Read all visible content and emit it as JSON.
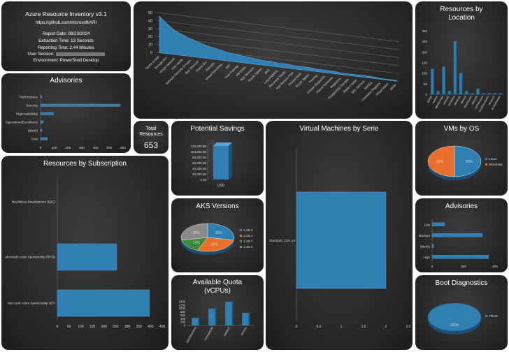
{
  "info": {
    "title": "Azure Resource Inventory v3.1",
    "url": "https://github.com/microsoft/ARI",
    "report_date": "Report Date: 08/23/2024",
    "extraction_time": "Extraction Time: 13 Seconds",
    "reporting_time": "Reporting Time: 2.44 Minutes",
    "user_session": "User Session: ",
    "environment": "Environment: PowerShell Desktop"
  },
  "total": {
    "title_1": "Total",
    "title_2": "Resources",
    "value": "653"
  },
  "titles": {
    "advisories": "Advisories",
    "potential_savings": "Potential Savings",
    "vm_by_serie": "Virtual Machines by Serie",
    "resources_by_location_1": "Resources by",
    "resources_by_location_2": "Location",
    "vms_by_os": "VMs by OS",
    "resources_by_subscription": "Resources by Subscription",
    "aks_versions": "AKS Versions",
    "advisories_impact": "Advisories",
    "available_quota_1": "Available Quota",
    "available_quota_2": "(vCPUs)",
    "boot_diagnostics": "Boot Diagnostics"
  },
  "colors": {
    "blue": "#2f7fb3",
    "orange": "#e86f2c",
    "green": "#3b8a3e",
    "gray": "#8a8a8a",
    "panel": "#2a2a2a"
  },
  "chart_data": [
    {
      "id": "resource_types",
      "type": "area",
      "categories": [
        "Quota Usage",
        "Storage Acc",
        "Virtual Network",
        "Key Vaults",
        "Network Security Groups",
        "App Services",
        "Public IPs",
        "Subnets",
        "Virtual Machines",
        "NIC",
        "Vnet Peering",
        "VM Disks",
        "App Services",
        "Route Tables",
        "AKS",
        "Log Analytics",
        "Recovery Vaults",
        "App Service Plan",
        "Private DNS",
        "Route Tables",
        "Peering",
        "Private Endpoints",
        "Virtual Networks",
        "Registries",
        "PostgreSQL Flexible",
        "Redis Cache",
        "SQL Servers",
        "MySQL",
        "Container Registry",
        "Virtual WAN",
        "APIM"
      ],
      "values": [
        46,
        37,
        30,
        26,
        22,
        19,
        16,
        14,
        12,
        10,
        9,
        8,
        7,
        6,
        6,
        5,
        5,
        4,
        4,
        4,
        3,
        3,
        3,
        2,
        2,
        2,
        2,
        2,
        1,
        1,
        1
      ],
      "yticks": [
        "50",
        "40",
        "30",
        "20",
        "10",
        "0"
      ],
      "ylim": [
        0,
        50
      ]
    },
    {
      "id": "advisories_category",
      "type": "bar",
      "orientation": "horizontal",
      "categories": [
        "Performance",
        "Security",
        "HighAvailability",
        "OperationalExcellence",
        "(blank)",
        "Cost"
      ],
      "values": [
        5,
        580,
        95,
        20,
        5,
        50
      ],
      "xticks": [
        "0",
        "100",
        "200",
        "300",
        "400",
        "500",
        "600"
      ],
      "xlim": [
        0,
        600
      ]
    },
    {
      "id": "potential_savings",
      "type": "bar",
      "categories": [
        "USD"
      ],
      "values": [
        120000
      ],
      "yticks": [
        "120,000.00",
        "100,000.00",
        "80,000.00",
        "60,000.00",
        "40,000.00",
        "20,000.00",
        "0.00"
      ],
      "ylim": [
        0,
        120000
      ]
    },
    {
      "id": "vm_by_serie",
      "type": "bar",
      "orientation": "horizontal",
      "categories": [
        "Standard_D2s_v3"
      ],
      "values": [
        2
      ],
      "xticks": [
        "0",
        "0.5",
        "1",
        "1.5",
        "2",
        "2.5"
      ],
      "xlim": [
        0,
        2.5
      ]
    },
    {
      "id": "resources_by_location",
      "type": "bar",
      "categories": [
        "global",
        "eastus",
        "westeurope",
        "eastus2",
        "centralus",
        "westus2",
        "westus",
        "brazilsouth",
        "uksouth",
        "northeurope",
        "southcentralus",
        "westus3",
        "australiaeast"
      ],
      "values": [
        120,
        15,
        130,
        15,
        250,
        100,
        15,
        5,
        25,
        5,
        5,
        5,
        5
      ],
      "yticks": [
        "300",
        "250",
        "200",
        "150",
        "100",
        "50",
        "0"
      ],
      "ylim": [
        0,
        300
      ]
    },
    {
      "id": "vms_by_os",
      "type": "pie",
      "labels": [
        "Linux",
        "Windows"
      ],
      "values": [
        50,
        50
      ],
      "data_labels": [
        "50%",
        "50%"
      ]
    },
    {
      "id": "resources_by_subscription",
      "type": "bar",
      "orientation": "horizontal",
      "categories": [
        "MyAbilities Development (B2C)",
        "Microsoft Azure Sponsorship PROD",
        "Microsoft Azure Sponsorship DEV"
      ],
      "values": [
        0,
        255,
        395
      ],
      "xticks": [
        "0",
        "50",
        "100",
        "150",
        "200",
        "250",
        "300",
        "350",
        "400",
        "450"
      ],
      "xlim": [
        0,
        450
      ]
    },
    {
      "id": "aks_versions",
      "type": "pie",
      "labels": [
        "1.28.3",
        "1.28.4",
        "1.29.7",
        "1.30.3"
      ],
      "values": [
        25,
        25,
        14,
        25
      ],
      "data_labels": [
        "25%",
        "25%",
        "14%",
        "25%"
      ]
    },
    {
      "id": "advisories_impact",
      "type": "bar",
      "orientation": "horizontal",
      "categories": [
        "Low",
        "Medium",
        "(blank)",
        "High"
      ],
      "values": [
        80,
        320,
        5,
        360
      ],
      "xticks": [
        "0",
        "200",
        "400"
      ],
      "xlim": [
        0,
        400
      ]
    },
    {
      "id": "available_quota",
      "type": "bar",
      "categories": [
        "canadacentral",
        "canadaeast",
        "eastus2",
        "westus"
      ],
      "values": [
        450,
        1000,
        1400,
        750
      ],
      "yticks": [
        "1400",
        "1200",
        "1000",
        "800",
        "600",
        "400",
        "200",
        "0"
      ],
      "ylim": [
        0,
        1400
      ]
    },
    {
      "id": "boot_diagnostics",
      "type": "pie",
      "labels": [
        "TRUE"
      ],
      "values": [
        100
      ],
      "data_labels": [
        "100%"
      ]
    }
  ]
}
